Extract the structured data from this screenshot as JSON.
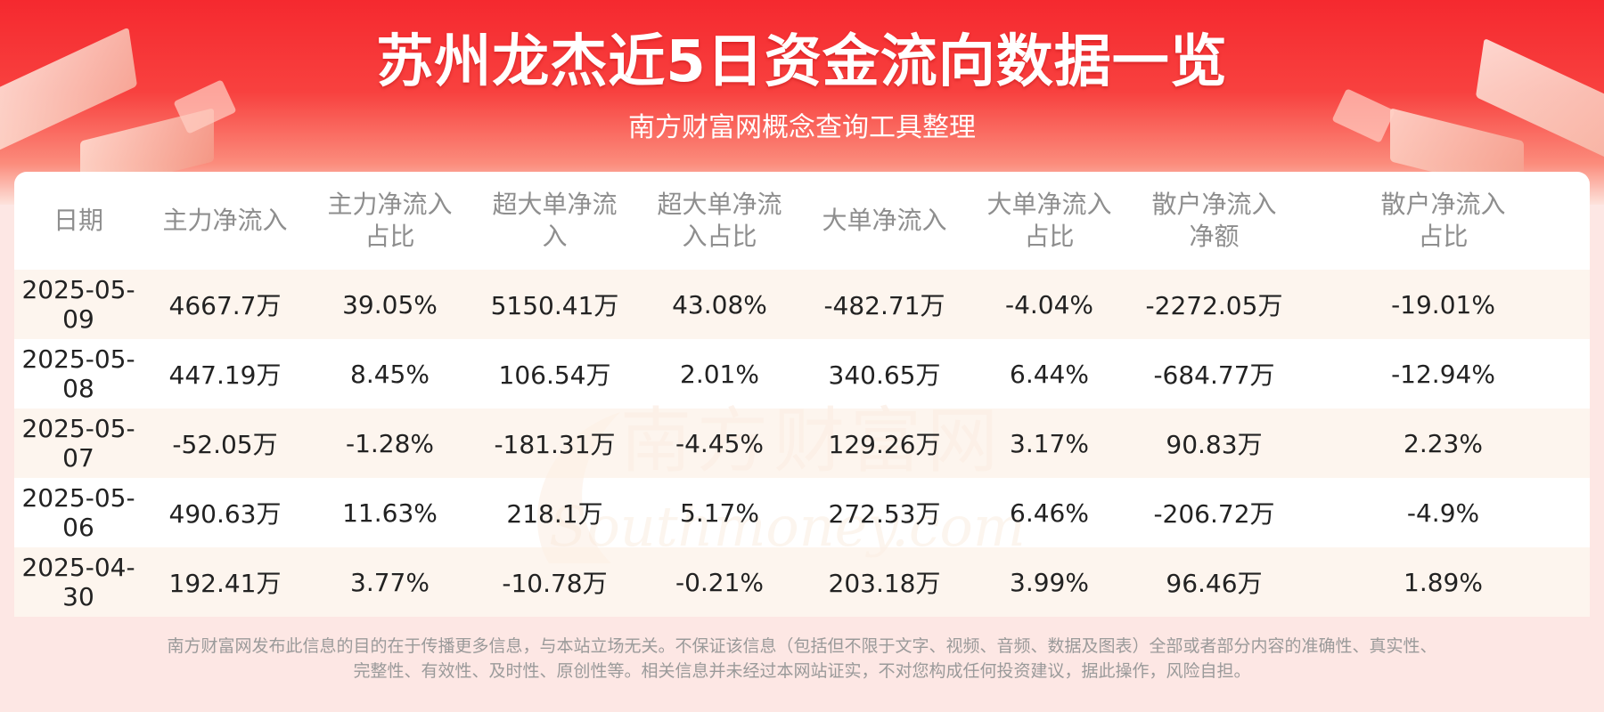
{
  "header": {
    "title": "苏州龙杰近5日资金流向数据一览",
    "subtitle": "南方财富网概念查询工具整理"
  },
  "watermark": {
    "cn": "南方财富网",
    "en": "Southmoney.com"
  },
  "chart_data": {
    "type": "table",
    "columns": [
      "日期",
      "主力净流入",
      "主力净流入占比",
      "超大单净流入",
      "超大单净流入占比",
      "大单净流入",
      "大单净流入占比",
      "散户净流入净额",
      "散户净流入占比"
    ],
    "header_lines": [
      [
        "日期"
      ],
      [
        "主力净流入"
      ],
      [
        "主力净流入",
        "占比"
      ],
      [
        "超大单净流",
        "入"
      ],
      [
        "超大单净流",
        "入占比"
      ],
      [
        "大单净流入"
      ],
      [
        "大单净流入",
        "占比"
      ],
      [
        "散户净流入",
        "净额"
      ],
      [
        "散户净流入",
        "占比"
      ]
    ],
    "rows": [
      [
        "2025-05-09",
        "4667.7万",
        "39.05%",
        "5150.41万",
        "43.08%",
        "-482.71万",
        "-4.04%",
        "-2272.05万",
        "-19.01%"
      ],
      [
        "2025-05-08",
        "447.19万",
        "8.45%",
        "106.54万",
        "2.01%",
        "340.65万",
        "6.44%",
        "-684.77万",
        "-12.94%"
      ],
      [
        "2025-05-07",
        "-52.05万",
        "-1.28%",
        "-181.31万",
        "-4.45%",
        "129.26万",
        "3.17%",
        "90.83万",
        "2.23%"
      ],
      [
        "2025-05-06",
        "490.63万",
        "11.63%",
        "218.1万",
        "5.17%",
        "272.53万",
        "6.46%",
        "-206.72万",
        "-4.9%"
      ],
      [
        "2025-04-30",
        "192.41万",
        "3.77%",
        "-10.78万",
        "-0.21%",
        "203.18万",
        "3.99%",
        "96.46万",
        "1.89%"
      ]
    ]
  },
  "footer": {
    "disclaimer_line1": "南方财富网发布此信息的目的在于传播更多信息，与本站立场无关。不保证该信息（包括但不限于文字、视频、音频、数据及图表）全部或者部分内容的准确性、真实性、",
    "disclaimer_line2": "完整性、有效性、及时性、原创性等。相关信息并未经过本网站证实，不对您构成任何投资建议，据此操作，风险自担。"
  },
  "colors": {
    "banner_red": "#f5292f",
    "row_alt": "#fdf3eb",
    "header_text": "#8e8e8e",
    "body_text": "#222222",
    "watermark": "#f4c9a6"
  }
}
